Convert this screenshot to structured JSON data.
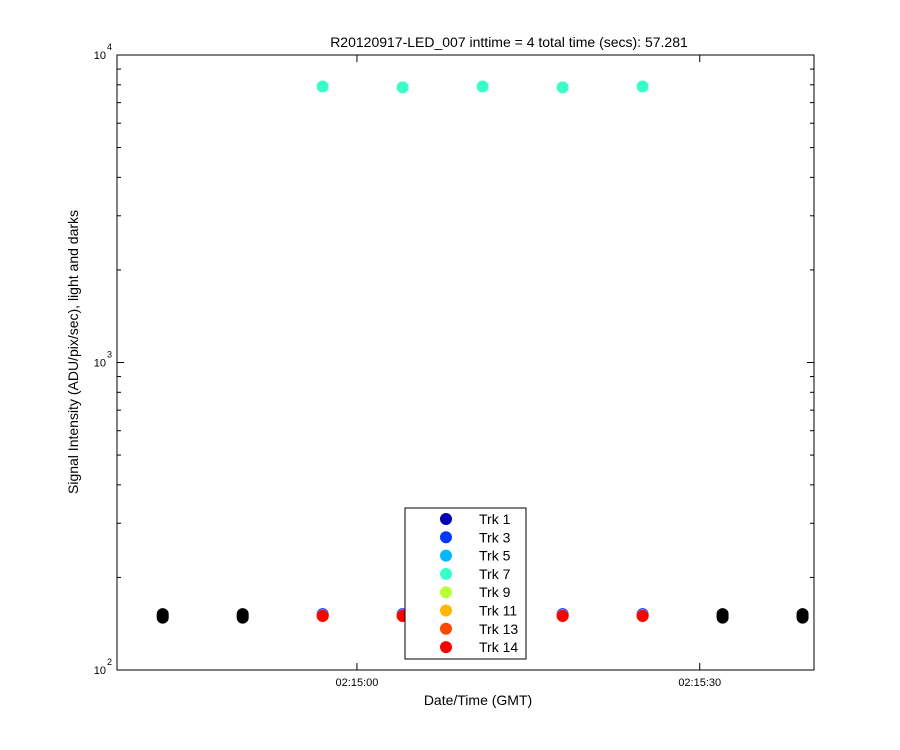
{
  "chart_data": {
    "type": "scatter",
    "title": "R20120917-LED_007 inttime = 4 total time (secs): 57.281",
    "xlabel": "Date/Time (GMT)",
    "ylabel": "Signal Intensity (ADU/pix/sec), light and darks",
    "y_scale": "log",
    "ylim": [
      100,
      10000
    ],
    "y_ticks": [
      {
        "value": 100,
        "base": "10",
        "exp": "2"
      },
      {
        "value": 1000,
        "base": "10",
        "exp": "3"
      },
      {
        "value": 10000,
        "base": "10",
        "exp": "4"
      }
    ],
    "xlim": [
      "02:14:39",
      "02:15:40"
    ],
    "x_ticks": [
      "02:15:00",
      "02:15:30"
    ],
    "legend_position": "bottom-center",
    "series": [
      {
        "name": "Trk 1",
        "color": "#0000b8",
        "x": [
          "02:14:57",
          "02:15:04",
          "02:15:18",
          "02:15:25"
        ],
        "y": [
          151,
          151,
          151,
          151
        ]
      },
      {
        "name": "Trk 3",
        "color": "#0038ff",
        "x": [
          "02:14:57",
          "02:15:04",
          "02:15:18",
          "02:15:25"
        ],
        "y": [
          152,
          152,
          152,
          152
        ]
      },
      {
        "name": "Trk 5",
        "color": "#00b8ff",
        "x": [
          "02:14:57",
          "02:15:04",
          "02:15:18",
          "02:15:25"
        ],
        "y": [
          151,
          151,
          151,
          151
        ]
      },
      {
        "name": "Trk 7",
        "color": "#38ffc8",
        "x": [
          "02:14:57",
          "02:15:04",
          "02:15:11",
          "02:15:18",
          "02:15:25"
        ],
        "y": [
          7900,
          7850,
          7900,
          7850,
          7900
        ]
      },
      {
        "name": "Trk 9",
        "color": "#b8ff38",
        "x": [
          "02:14:57",
          "02:15:04",
          "02:15:18",
          "02:15:25"
        ],
        "y": [
          150,
          150,
          150,
          150
        ]
      },
      {
        "name": "Trk 11",
        "color": "#ffb800",
        "x": [
          "02:14:57",
          "02:15:04",
          "02:15:18",
          "02:15:25"
        ],
        "y": [
          150,
          150,
          150,
          150
        ]
      },
      {
        "name": "Trk 13",
        "color": "#ff4800",
        "x": [
          "02:14:57",
          "02:15:04",
          "02:15:18",
          "02:15:25"
        ],
        "y": [
          150,
          150,
          150,
          150
        ]
      },
      {
        "name": "Trk 14",
        "color": "#ff0000",
        "x": [
          "02:14:57",
          "02:15:04",
          "02:15:18",
          "02:15:25"
        ],
        "y": [
          150,
          150,
          150,
          150
        ]
      },
      {
        "color": "#000000",
        "x": [
          "02:14:43",
          "02:14:43",
          "02:14:43",
          "02:14:50",
          "02:14:50",
          "02:14:50",
          "02:15:32",
          "02:15:32",
          "02:15:32",
          "02:15:39",
          "02:15:39",
          "02:15:39"
        ],
        "y": [
          148,
          150,
          152,
          148,
          150,
          152,
          148,
          150,
          152,
          148,
          150,
          152
        ]
      }
    ]
  }
}
